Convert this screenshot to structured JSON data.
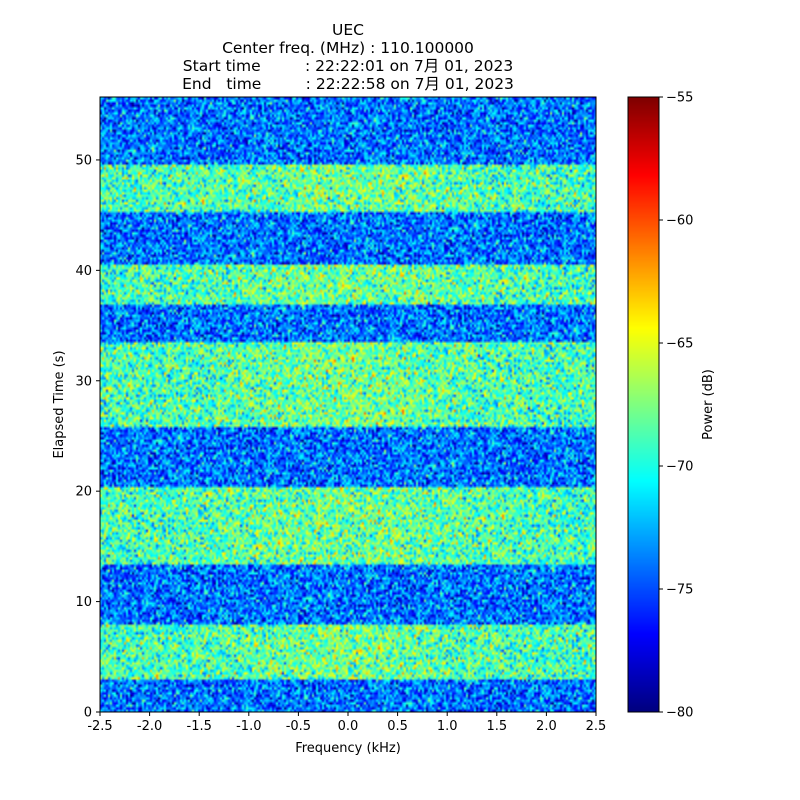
{
  "chart_data": {
    "type": "heatmap",
    "title_lines": [
      "UEC",
      "Center freq. (MHz) : 110.100000",
      "Start time         : 22:22:01 on 7月 01, 2023",
      "End   time         : 22:22:58 on 7月 01, 2023"
    ],
    "xlabel": "Frequency (kHz)",
    "ylabel": "Elapsed Time (s)",
    "colorbar_label": "Power (dB)",
    "colormap": "jet",
    "xlim": [
      -2.5,
      2.5
    ],
    "ylim": [
      0,
      55.7
    ],
    "clim": [
      -80,
      -55
    ],
    "xticks": [
      -2.5,
      -2.0,
      -1.5,
      -1.0,
      -0.5,
      0.0,
      0.5,
      1.0,
      1.5,
      2.0,
      2.5
    ],
    "xtick_labels": [
      "-2.5",
      "-2.0",
      "-1.5",
      "-1.0",
      "-0.5",
      "0.0",
      "0.5",
      "1.0",
      "1.5",
      "2.0",
      "2.5"
    ],
    "yticks": [
      0,
      10,
      20,
      30,
      40,
      50
    ],
    "ytick_labels": [
      "0",
      "10",
      "20",
      "30",
      "40",
      "50"
    ],
    "cticks": [
      -80,
      -75,
      -70,
      -65,
      -60,
      -55
    ],
    "ctick_labels": [
      "−80",
      "−75",
      "−70",
      "−65",
      "−60",
      "−55"
    ],
    "bands": [
      {
        "t_start": 0.0,
        "t_end": 3.0,
        "level": "low"
      },
      {
        "t_start": 3.0,
        "t_end": 8.0,
        "level": "high"
      },
      {
        "t_start": 8.0,
        "t_end": 13.3,
        "level": "low"
      },
      {
        "t_start": 13.3,
        "t_end": 20.3,
        "level": "high"
      },
      {
        "t_start": 20.3,
        "t_end": 25.8,
        "level": "low"
      },
      {
        "t_start": 25.8,
        "t_end": 33.5,
        "level": "high"
      },
      {
        "t_start": 33.5,
        "t_end": 37.0,
        "level": "low"
      },
      {
        "t_start": 37.0,
        "t_end": 40.5,
        "level": "high"
      },
      {
        "t_start": 40.5,
        "t_end": 45.3,
        "level": "low"
      },
      {
        "t_start": 45.3,
        "t_end": 49.5,
        "level": "high"
      },
      {
        "t_start": 49.5,
        "t_end": 55.7,
        "level": "low"
      }
    ],
    "band_power_db": {
      "low": -74,
      "high": -69
    },
    "grid": false
  }
}
